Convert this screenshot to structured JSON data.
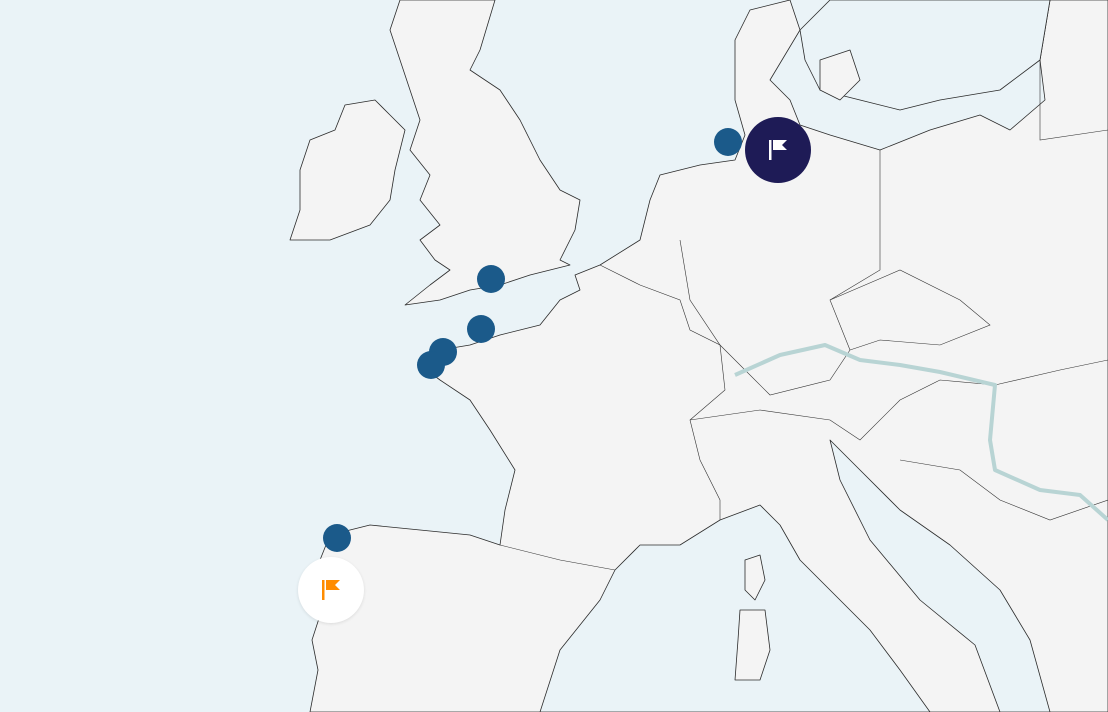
{
  "map": {
    "colors": {
      "sea": "#eaf3f7",
      "land": "#f4f4f4",
      "river": "#b8d4d4",
      "marker": "#1b5a8a",
      "selected_marker": "#1e1b56",
      "origin_marker_bg": "#ffffff",
      "origin_flag": "#ff8c00"
    },
    "markers": [
      {
        "type": "point",
        "icon": "circle"
      },
      {
        "type": "point",
        "icon": "circle"
      },
      {
        "type": "point",
        "icon": "circle"
      },
      {
        "type": "point",
        "icon": "circle"
      },
      {
        "type": "point",
        "icon": "circle"
      },
      {
        "type": "point",
        "icon": "circle"
      },
      {
        "type": "destination",
        "icon": "flag-icon"
      },
      {
        "type": "origin",
        "icon": "flag-icon"
      }
    ]
  }
}
